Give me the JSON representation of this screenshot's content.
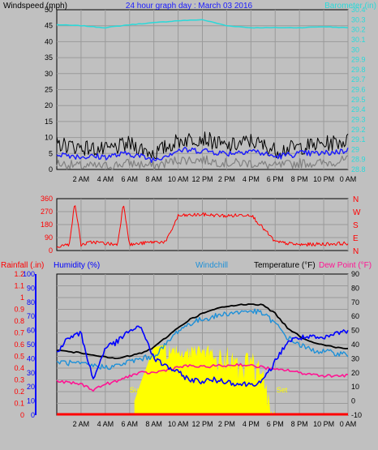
{
  "header": {
    "title": "24 hour graph day : March 03 2016"
  },
  "x_axis": {
    "labels": [
      "2 AM",
      "4 AM",
      "6 AM",
      "8 AM",
      "10 AM",
      "12 PM",
      "2 PM",
      "4 PM",
      "6 PM",
      "8 PM",
      "10 PM",
      "0 AM"
    ],
    "hours": [
      2,
      4,
      6,
      8,
      10,
      12,
      14,
      16,
      18,
      20,
      22,
      24
    ]
  },
  "colors": {
    "background": "#c0c0c0",
    "plot_bg": "#c0c0c0",
    "grid": "#9a9a9a",
    "wind_max": "#000000",
    "wind_avg": "#1a1aff",
    "wind_low": "#808080",
    "barometer": "#29d9d9",
    "direction": "#ff0000",
    "humidity": "#0000ff",
    "windchill": "#1e90d8",
    "temperature": "#000000",
    "dewpoint": "#ff1493",
    "solar": "#ffff00",
    "rainfall": "#ff0000"
  },
  "chart_data": [
    {
      "type": "line",
      "title": "24 hour graph day : March 03 2016",
      "left_axis_label": "Windspeed (mph)",
      "right_axis_label": "Barometer (in)",
      "xlabel": "",
      "ylim": [
        0,
        50
      ],
      "y_ticks": [
        0,
        5,
        10,
        15,
        20,
        25,
        30,
        35,
        40,
        45,
        50
      ],
      "y2lim": [
        28.8,
        30.4
      ],
      "y2_ticks": [
        "30.4",
        "30.3",
        "30.2",
        "30.1",
        "30",
        "29.9",
        "29.8",
        "29.7",
        "29.6",
        "29.5",
        "29.4",
        "29.3",
        "29.2",
        "29.1",
        "29",
        "28.9",
        "28.8"
      ],
      "x": [
        0,
        2,
        4,
        6,
        8,
        10,
        12,
        14,
        16,
        18,
        20,
        22,
        24
      ],
      "series": [
        {
          "name": "Barometer (in)",
          "axis": "right",
          "values": [
            30.25,
            30.24,
            30.22,
            30.25,
            30.27,
            30.29,
            30.3,
            30.24,
            30.22,
            30.22,
            30.22,
            30.23,
            30.22
          ]
        },
        {
          "name": "wind max",
          "axis": "left",
          "values": [
            8,
            7,
            6,
            8,
            5,
            9,
            10,
            7,
            9,
            6,
            7,
            8,
            9
          ]
        },
        {
          "name": "wind avg",
          "axis": "left",
          "values": [
            5,
            4,
            4,
            5,
            3,
            6,
            6,
            5,
            6,
            4,
            5,
            5,
            6
          ]
        },
        {
          "name": "wind low",
          "axis": "left",
          "values": [
            2,
            1,
            1,
            2,
            1,
            3,
            3,
            2,
            2,
            1,
            2,
            2,
            3
          ]
        }
      ]
    },
    {
      "type": "line",
      "title": "",
      "left_axis_label": "",
      "right_axis_labels": [
        "N",
        "W",
        "S",
        "E",
        "N"
      ],
      "ylim": [
        0,
        360
      ],
      "y_ticks": [
        0,
        90,
        180,
        270,
        360
      ],
      "x": [
        0,
        1,
        1.5,
        2,
        3,
        4,
        5,
        5.5,
        6,
        7,
        8,
        9,
        10,
        12,
        14,
        16,
        18,
        20,
        22,
        24
      ],
      "series": [
        {
          "name": "wind direction",
          "values": [
            30,
            40,
            330,
            40,
            60,
            50,
            40,
            330,
            40,
            50,
            60,
            60,
            240,
            250,
            240,
            250,
            60,
            40,
            45,
            50
          ]
        }
      ]
    },
    {
      "type": "line",
      "legend": [
        "Rainfall (.in)",
        "Humidity (%)",
        "Windchill",
        "Temperature (°F)",
        "Dew Point (°F)"
      ],
      "rain_axis": {
        "label": "Rainfall (.in)",
        "ylim": [
          0,
          1.2
        ],
        "ticks": [
          "0",
          "0.1",
          "0.2",
          "0.3",
          "0.4",
          "0.5",
          "0.6",
          "0.7",
          "0.8",
          "0.9",
          "1",
          "1.1",
          "1.2"
        ]
      },
      "humidity_axis": {
        "label": "Humidity (%)",
        "ylim": [
          0,
          100
        ],
        "ticks": [
          0,
          10,
          20,
          30,
          40,
          50,
          60,
          70,
          80,
          90,
          100
        ]
      },
      "temp_axis": {
        "label": "Temperature (°F)",
        "ylim": [
          -10,
          90
        ],
        "ticks": [
          -10,
          0,
          10,
          20,
          30,
          40,
          50,
          60,
          70,
          80,
          90
        ]
      },
      "sun_labels": {
        "rise": "Sun",
        "set": "Set"
      },
      "x": [
        0,
        1,
        2,
        3,
        4,
        5,
        6,
        7,
        8,
        9,
        10,
        11,
        12,
        13,
        14,
        15,
        16,
        17,
        18,
        19,
        20,
        21,
        22,
        23,
        24
      ],
      "series": [
        {
          "name": "Humidity (%)",
          "axis": "humidity",
          "values": [
            45,
            55,
            58,
            25,
            48,
            52,
            60,
            62,
            40,
            35,
            30,
            25,
            24,
            25,
            24,
            22,
            22,
            24,
            38,
            52,
            55,
            55,
            54,
            58,
            60
          ]
        },
        {
          "name": "Windchill",
          "axis": "temp",
          "values": [
            28,
            27,
            26,
            25,
            24,
            25,
            28,
            30,
            32,
            40,
            50,
            55,
            58,
            60,
            62,
            63,
            64,
            62,
            55,
            45,
            40,
            36,
            35,
            34,
            33
          ]
        },
        {
          "name": "Temperature (°F)",
          "axis": "temp",
          "values": [
            36,
            35,
            34,
            33,
            31,
            30,
            32,
            34,
            38,
            45,
            52,
            58,
            62,
            65,
            67,
            68,
            69,
            68,
            62,
            52,
            46,
            42,
            40,
            38,
            37
          ]
        },
        {
          "name": "Dew Point (°F)",
          "axis": "temp",
          "values": [
            14,
            13,
            12,
            8,
            12,
            14,
            18,
            20,
            20,
            22,
            24,
            25,
            24,
            25,
            25,
            26,
            25,
            24,
            22,
            22,
            20,
            19,
            18,
            18,
            18
          ]
        },
        {
          "name": "solar",
          "axis": "humidity",
          "values": [
            0,
            0,
            0,
            0,
            0,
            0,
            0,
            25,
            48,
            50,
            50,
            50,
            50,
            50,
            50,
            48,
            45,
            40,
            0,
            0,
            0,
            0,
            0,
            0,
            0
          ]
        },
        {
          "name": "Rainfall (.in)",
          "axis": "rain",
          "values": [
            0,
            0,
            0,
            0,
            0,
            0,
            0,
            0,
            0,
            0,
            0,
            0,
            0,
            0,
            0,
            0,
            0,
            0,
            0,
            0,
            0,
            0,
            0,
            0,
            0
          ]
        }
      ]
    }
  ]
}
